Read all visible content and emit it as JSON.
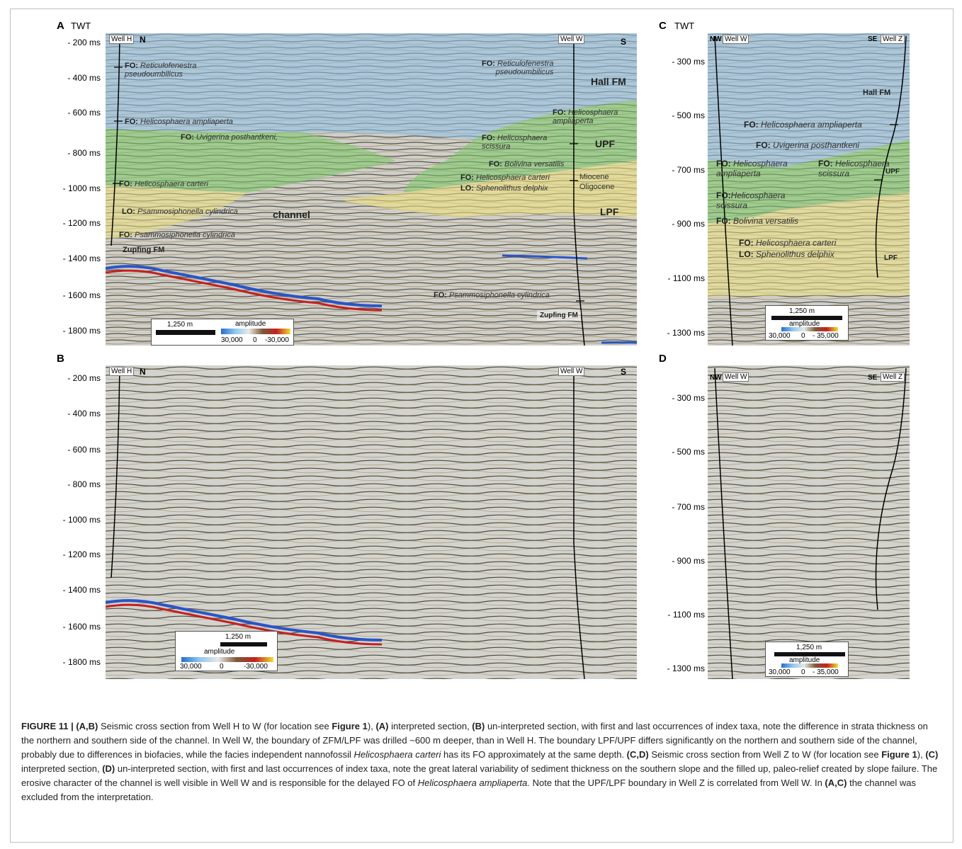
{
  "panels": {
    "A": {
      "label": "A",
      "twt": "TWT",
      "ticks": [
        "- 200 ms",
        "- 400 ms",
        "- 600 ms",
        "- 800 ms",
        "- 1000 ms",
        "- 1200 ms",
        "- 1400 ms",
        "- 1600 ms",
        "- 1800 ms"
      ],
      "well_left": "Well H",
      "well_right": "Well W",
      "dir_left": "N",
      "dir_right": "S"
    },
    "B": {
      "label": "B",
      "ticks": [
        "- 200 ms",
        "- 400 ms",
        "- 600 ms",
        "- 800 ms",
        "- 1000 ms",
        "- 1200 ms",
        "- 1400 ms",
        "- 1600 ms",
        "- 1800 ms"
      ],
      "well_left": "Well H",
      "well_right": "Well W",
      "dir_left": "N",
      "dir_right": "S"
    },
    "C": {
      "label": "C",
      "twt": "TWT",
      "ticks": [
        "- 300 ms",
        "- 500 ms",
        "- 700 ms",
        "- 900 ms",
        "- 1100 ms",
        "- 1300 ms"
      ],
      "well_left": "Well W",
      "well_right": "Well Z",
      "dir_left": "NW",
      "dir_right": "SE"
    },
    "D": {
      "label": "D",
      "ticks": [
        "- 300 ms",
        "- 500 ms",
        "- 700 ms",
        "- 900 ms",
        "- 1100 ms",
        "- 1300 ms"
      ],
      "well_left": "Well W",
      "well_right": "Well Z",
      "dir_left": "NW",
      "dir_right": "SE"
    }
  },
  "scalebars": {
    "ab": {
      "distance": "1,250 m",
      "title": "amplitude",
      "min": "30,000",
      "mid": "0",
      "max": "-30,000"
    },
    "cd": {
      "distance": "1,250 m",
      "title": "amplitude",
      "min": "30,000",
      "mid": "0",
      "max": "- 35,000"
    }
  },
  "annotations": {
    "fo_prefix": "FO:",
    "lo_prefix": "LO:",
    "reticulofenestra_1": "Reticulofenestra",
    "reticulofenestra_2": "pseudoumbilicus",
    "ampliaperta": "Helicosphaera ampliaperta",
    "uvigerina": "Uvigerina posthantkeni,",
    "carteri": "Helicosphaera carteri",
    "psammo": "Psammosiphonella cylindrica",
    "heli_1": "Helicosphaera",
    "ampli_short": "ampliaperta",
    "scissura": "scissura",
    "bolivina": "Bolivina versatilis",
    "sphenolithus": "Sphenolithus delphix",
    "uvigerina_c": "Uvigerina posthantkeni",
    "heli_trunc": "Helicosphaera",
    "heli_scissura": "Helicosphaera scissura",
    "heli_carteri": "Helicosphaera carteri"
  },
  "formations": {
    "hall": "Hall FM",
    "upf": "UPF",
    "lpf": "LPF",
    "channel": "channel",
    "zupfing": "Zupfing FM",
    "miocene": "Miocene",
    "oligocene": "Oligocene"
  },
  "caption": {
    "fig_label": "FIGURE 11 |",
    "lbl_ab": "(A,B)",
    "t1": " Seismic cross section from Well H to W (for location see ",
    "fig1_a": "Figure 1",
    "t2": "), ",
    "lbl_a": "(A)",
    "t3": " interpreted section, ",
    "lbl_b": "(B)",
    "t4": " un-interpreted section, with first and last occurrences of index taxa, note the difference in strata thickness on the northern and southern side of the channel. In Well W, the boundary of ZFM/LPF was drilled ~600 m deeper, than in Well H. The boundary LPF/UPF differs significantly on the northern and southern side of the channel, probably due to differences in biofacies, while the facies independent nannofossil ",
    "taxon1": "Helicosphaera carteri",
    "t5": " has its FO approximately at the same depth. ",
    "lbl_cd": "(C,D)",
    "t6": " Seismic cross section from Well Z to W (for location see ",
    "fig1_b": "Figure 1",
    "t7": "), ",
    "lbl_c": "(C)",
    "t8": " interpreted section, ",
    "lbl_d": "(D)",
    "t9": " un-interpreted section, with first and last occurrences of index taxa, note the great lateral variability of sediment thickness on the southern slope and the filled up, paleo-relief created by slope failure. The erosive character of the channel is well visible in Well W and is responsible for the delayed FO of ",
    "taxon2": "Helicosphaera ampliaperta.",
    "t10": " Note that the UPF/LPF boundary in Well Z is correlated from Well W. In ",
    "lbl_ac": "(A,C)",
    "t11": " the channel was excluded from the interpretation."
  },
  "colors": {
    "hall_fm": "#8fc1e8",
    "upf": "#78c864",
    "lpf": "#f0e37a",
    "seismic_dark": "#4a4a3a",
    "seismic_gray": "#c7c7c2",
    "blue_reflector": "#2a55c8",
    "red_reflector": "#c42020"
  }
}
